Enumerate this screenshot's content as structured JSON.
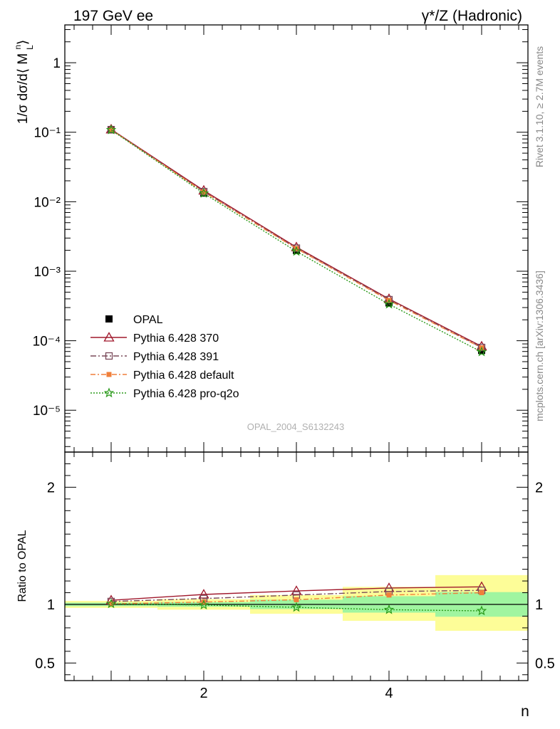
{
  "header": {
    "left": "197 GeV ee",
    "right": "γ*/Z (Hadronic)"
  },
  "side_labels": {
    "rivet": "Rivet 3.1.10, ≥ 2.7M events",
    "mcplots": "mcplots.cern.ch [arXiv:1306.3436]"
  },
  "watermark": "OPAL_2004_S6132243",
  "colors": {
    "opal": "#000000",
    "p370": "#a0182c",
    "p391": "#7a4a5a",
    "pdefault": "#f07f3a",
    "pq2o": "#2a9a1a",
    "band_inner": "#a0f5a0",
    "band_outer": "#fdfd98"
  },
  "chart_data": [
    {
      "type": "line",
      "panel": "main",
      "ylabel": "1/σ dσ/d⟨ M_L^n⟩",
      "yscale": "log",
      "ylim": [
        2.5e-06,
        3.5
      ],
      "xlim": [
        0.5,
        5.5
      ],
      "y_ticks": [
        {
          "value": 1,
          "label": "1"
        },
        {
          "value": 0.1,
          "label": "10⁻¹"
        },
        {
          "value": 0.01,
          "label": "10⁻²"
        },
        {
          "value": 0.001,
          "label": "10⁻³"
        },
        {
          "value": 0.0001,
          "label": "10⁻⁴"
        },
        {
          "value": 1e-05,
          "label": "10⁻⁵"
        }
      ],
      "x": [
        1,
        2,
        3,
        4,
        5
      ],
      "series": [
        {
          "name": "OPAL",
          "key": "opal",
          "marker": "square-filled",
          "values": [
            0.108,
            0.0133,
            0.00199,
            0.00035,
            7.25e-05
          ]
        },
        {
          "name": "Pythia 6.428 370",
          "key": "p370",
          "marker": "triangle-open",
          "values": [
            0.11,
            0.0145,
            0.00222,
            0.0004,
            8.3e-05
          ]
        },
        {
          "name": "Pythia 6.428 391",
          "key": "p391",
          "marker": "square-open",
          "values": [
            0.109,
            0.014,
            0.00215,
            0.00039,
            8e-05
          ]
        },
        {
          "name": "Pythia 6.428 default",
          "key": "pdefault",
          "marker": "square-filled",
          "values": [
            0.1085,
            0.0138,
            0.00212,
            0.00038,
            7.9e-05
          ]
        },
        {
          "name": "Pythia 6.428 pro-q2o",
          "key": "pq2o",
          "marker": "star-open",
          "values": [
            0.108,
            0.0132,
            0.00193,
            0.000335,
            6.9e-05
          ]
        }
      ],
      "legend": {
        "placement": "bottom-left"
      }
    },
    {
      "type": "line",
      "panel": "ratio",
      "ylabel": "Ratio to OPAL",
      "xlabel": "n",
      "ylim": [
        0.35,
        2.3
      ],
      "xlim": [
        0.5,
        5.5
      ],
      "x_ticks": [
        {
          "value": 2,
          "label": "2"
        },
        {
          "value": 4,
          "label": "4"
        }
      ],
      "y_ticks": [
        {
          "value": 2,
          "label": "2"
        },
        {
          "value": 1,
          "label": "1"
        },
        {
          "value": 0.5,
          "label": "0.5"
        }
      ],
      "x": [
        1,
        2,
        3,
        4,
        5
      ],
      "bands": [
        {
          "x_lo": 0.5,
          "x_hi": 1.5,
          "inner": [
            0.985,
            1.015
          ],
          "outer": [
            0.97,
            1.03
          ]
        },
        {
          "x_lo": 1.5,
          "x_hi": 2.5,
          "inner": [
            0.98,
            1.02
          ],
          "outer": [
            0.955,
            1.045
          ]
        },
        {
          "x_lo": 2.5,
          "x_hi": 3.5,
          "inner": [
            0.96,
            1.04
          ],
          "outer": [
            0.92,
            1.08
          ]
        },
        {
          "x_lo": 3.5,
          "x_hi": 4.5,
          "inner": [
            0.93,
            1.07
          ],
          "outer": [
            0.86,
            1.15
          ]
        },
        {
          "x_lo": 4.5,
          "x_hi": 5.5,
          "inner": [
            0.895,
            1.105
          ],
          "outer": [
            0.775,
            1.25
          ]
        }
      ],
      "series": [
        {
          "name": "Pythia 6.428 370",
          "key": "p370",
          "marker": "triangle-open",
          "values": [
            1.035,
            1.085,
            1.115,
            1.14,
            1.15
          ]
        },
        {
          "name": "Pythia 6.428 391",
          "key": "p391",
          "marker": "square-open",
          "values": [
            1.025,
            1.05,
            1.08,
            1.11,
            1.12
          ]
        },
        {
          "name": "Pythia 6.428 default",
          "key": "pdefault",
          "marker": "square-filled",
          "values": [
            1.005,
            1.02,
            1.04,
            1.08,
            1.1
          ]
        },
        {
          "name": "Pythia 6.428 pro-q2o",
          "key": "pq2o",
          "marker": "star-open",
          "values": [
            1.005,
            0.995,
            0.975,
            0.955,
            0.945
          ]
        }
      ]
    }
  ]
}
